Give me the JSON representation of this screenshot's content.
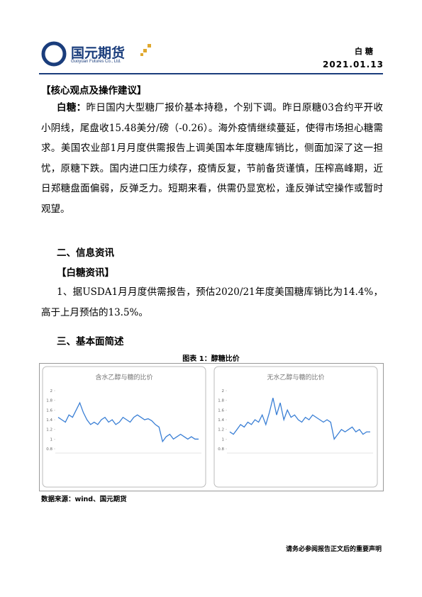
{
  "header": {
    "logo_cn": "国元期货",
    "logo_en": "Guoyuan Futures Co., Ltd.",
    "category": "白 糖",
    "date": "2021.01.13"
  },
  "core": {
    "heading": "【核心观点及操作建议】",
    "lead": "白糖：",
    "text": "昨日国内大型糖厂报价基本持稳，个别下调。昨日原糖03合约平开收小阴线，尾盘收15.48美分/磅（-0.26）。海外疫情继续蔓延，使得市场担心糖需求。美国农业部1月月度供需报告上调美国本年度糖库销比，侧面加深了这一担忧，原糖下跌。国内进口压力续存，疫情反复，节前备货谨慎，压榨高峰期，近日郑糖盘面偏弱，反弹乏力。短期来看，供需仍显宽松，逢反弹试空操作或暂时观望。"
  },
  "info": {
    "heading": "二、信息资讯",
    "subheading": "【白糖资讯】",
    "text": "1、据USDA1月月度供需报告，预估2020/21年度美国糖库销比为14.4%，高于上月预估的13.5%。"
  },
  "fundamentals": {
    "heading": "三、基本面简述",
    "caption": "图表 1：醇糖比价"
  },
  "chart_data": [
    {
      "type": "line",
      "title": "含水乙醇与糖的比价",
      "color": "#3a7fd5",
      "ylim": [
        0.8,
        2
      ],
      "yticks": [
        2,
        1.8,
        1.6,
        1.4,
        1.2,
        1,
        0.8
      ],
      "values": [
        1.45,
        1.4,
        1.35,
        1.5,
        1.45,
        1.6,
        1.75,
        1.55,
        1.4,
        1.3,
        1.35,
        1.3,
        1.4,
        1.45,
        1.35,
        1.4,
        1.3,
        1.35,
        1.45,
        1.4,
        1.35,
        1.45,
        1.5,
        1.45,
        1.4,
        1.42,
        1.38,
        1.3,
        1.25,
        0.95,
        1.05,
        1.1,
        1.0,
        1.05,
        1.1,
        1.05,
        1.0,
        1.05,
        1.0,
        1.0
      ]
    },
    {
      "type": "line",
      "title": "无水乙醇与糖的比价",
      "color": "#3a7fd5",
      "ylim": [
        0.8,
        2
      ],
      "yticks": [
        2,
        1.8,
        1.6,
        1.4,
        1.2,
        1,
        0.8
      ],
      "values": [
        1.15,
        1.1,
        1.2,
        1.3,
        1.25,
        1.35,
        1.3,
        1.4,
        1.35,
        1.5,
        1.3,
        1.55,
        1.85,
        1.5,
        1.75,
        1.4,
        1.6,
        1.45,
        1.5,
        1.4,
        1.35,
        1.45,
        1.4,
        1.5,
        1.45,
        1.4,
        1.35,
        1.4,
        1.35,
        1.0,
        1.1,
        1.2,
        1.15,
        1.2,
        1.25,
        1.15,
        1.2,
        1.1,
        1.15,
        1.15
      ]
    }
  ],
  "source": "数据来源：wind、国元期货",
  "footer": "请务必参阅报告正文后的重要声明"
}
